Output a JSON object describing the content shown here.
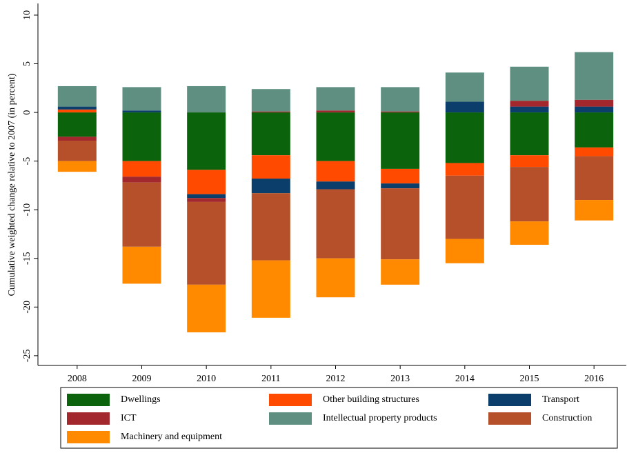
{
  "chart_data": {
    "type": "stacked-bar",
    "y_label": "Cumulative weighted change relative to 2007 (in percent)",
    "categories": [
      "2008",
      "2009",
      "2010",
      "2011",
      "2012",
      "2013",
      "2014",
      "2015",
      "2016"
    ],
    "series": [
      {
        "name": "Dwellings",
        "color": "#0b640b",
        "values": [
          -2.5,
          -5.0,
          -5.9,
          -4.4,
          -5.0,
          -5.8,
          -5.2,
          -4.4,
          -3.6
        ]
      },
      {
        "name": "Other building structures",
        "color": "#ff4a00",
        "values": [
          0.3,
          -1.6,
          -2.5,
          -2.4,
          -2.1,
          -1.5,
          -1.3,
          -1.2,
          -0.9
        ]
      },
      {
        "name": "Transport",
        "color": "#0c3e6c",
        "values": [
          0.3,
          0.2,
          -0.4,
          -1.5,
          -0.8,
          -0.5,
          1.1,
          0.6,
          0.6
        ]
      },
      {
        "name": "ICT",
        "color": "#a3282e",
        "values": [
          -0.4,
          -0.6,
          -0.4,
          0.1,
          0.2,
          0.1,
          0,
          0.6,
          0.7
        ]
      },
      {
        "name": "Intellectual property products",
        "color": "#5f8f80",
        "values": [
          2.1,
          2.4,
          2.7,
          2.3,
          2.4,
          2.5,
          3.0,
          3.5,
          4.9
        ]
      },
      {
        "name": "Construction",
        "color": "#b5502a",
        "values": [
          -2.1,
          -6.6,
          -8.5,
          -6.9,
          -7.1,
          -7.3,
          -6.5,
          -5.6,
          -4.5
        ]
      },
      {
        "name": "Machinery and equipment",
        "color": "#ff8a00",
        "values": [
          -1.1,
          -3.8,
          -4.9,
          -5.9,
          -4.0,
          -2.6,
          -2.5,
          -2.4,
          -2.1
        ]
      }
    ],
    "ylim": [
      -26,
      11.2
    ],
    "yticks": [
      -25,
      -20,
      -15,
      -10,
      -5,
      0,
      5,
      10
    ]
  }
}
